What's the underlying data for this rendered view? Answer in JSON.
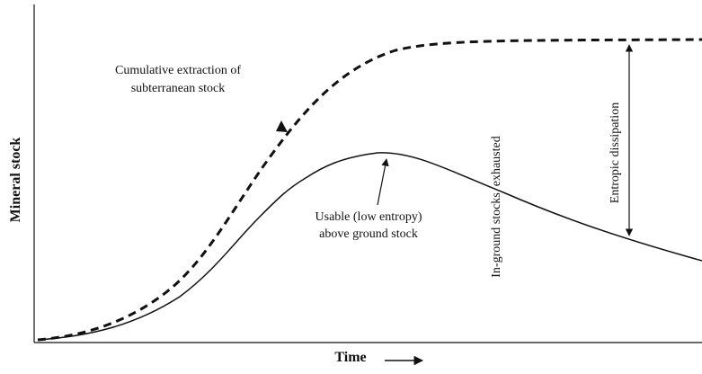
{
  "axes": {
    "y_label": "Mineral stock",
    "x_label": "Time"
  },
  "annotations": {
    "cumulative": [
      "Cumulative extraction of",
      "subterranean stock"
    ],
    "usable": [
      "Usable (low entropy)",
      "above ground stock"
    ],
    "exhausted": "In-ground stocks  exhausted",
    "dissipation": "Entropic dissipation"
  }
}
